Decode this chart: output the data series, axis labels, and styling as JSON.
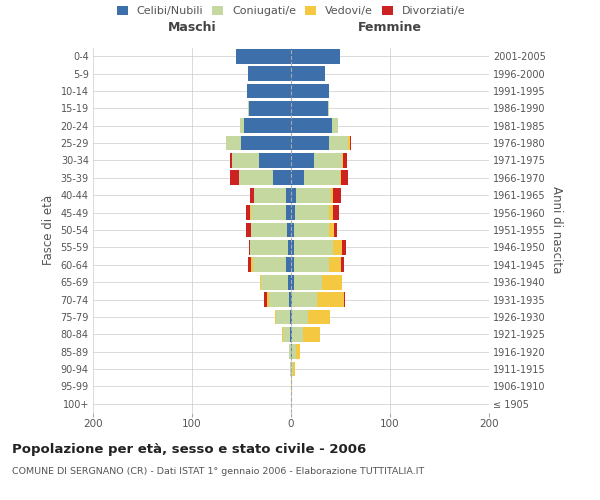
{
  "age_groups": [
    "100+",
    "95-99",
    "90-94",
    "85-89",
    "80-84",
    "75-79",
    "70-74",
    "65-69",
    "60-64",
    "55-59",
    "50-54",
    "45-49",
    "40-44",
    "35-39",
    "30-34",
    "25-29",
    "20-24",
    "15-19",
    "10-14",
    "5-9",
    "0-4"
  ],
  "birth_years": [
    "≤ 1905",
    "1906-1910",
    "1911-1915",
    "1916-1920",
    "1921-1925",
    "1926-1930",
    "1931-1935",
    "1936-1940",
    "1941-1945",
    "1946-1950",
    "1951-1955",
    "1956-1960",
    "1961-1965",
    "1966-1970",
    "1971-1975",
    "1976-1980",
    "1981-1985",
    "1986-1990",
    "1991-1995",
    "1996-2000",
    "2001-2005"
  ],
  "male": {
    "celibi": [
      0,
      0,
      0,
      0,
      1,
      1,
      2,
      3,
      5,
      3,
      4,
      5,
      5,
      18,
      32,
      51,
      47,
      42,
      44,
      43,
      56
    ],
    "coniugati": [
      0,
      0,
      1,
      2,
      7,
      14,
      20,
      27,
      33,
      38,
      36,
      35,
      32,
      35,
      28,
      15,
      5,
      1,
      0,
      0,
      0
    ],
    "vedovi": [
      0,
      0,
      0,
      0,
      1,
      1,
      2,
      1,
      2,
      0,
      0,
      1,
      0,
      0,
      0,
      0,
      0,
      0,
      0,
      0,
      0
    ],
    "divorziati": [
      0,
      0,
      0,
      0,
      0,
      0,
      3,
      0,
      3,
      1,
      5,
      4,
      4,
      9,
      2,
      0,
      0,
      0,
      0,
      0,
      0
    ]
  },
  "female": {
    "nubili": [
      0,
      0,
      0,
      1,
      1,
      1,
      1,
      3,
      3,
      3,
      3,
      4,
      5,
      13,
      23,
      38,
      41,
      37,
      38,
      34,
      49
    ],
    "coniugate": [
      0,
      0,
      2,
      4,
      11,
      16,
      25,
      28,
      35,
      39,
      35,
      34,
      35,
      36,
      29,
      20,
      6,
      1,
      0,
      0,
      0
    ],
    "vedove": [
      0,
      1,
      2,
      4,
      17,
      22,
      28,
      21,
      12,
      10,
      5,
      4,
      2,
      1,
      1,
      2,
      0,
      0,
      0,
      0,
      0
    ],
    "divorziate": [
      0,
      0,
      0,
      0,
      0,
      0,
      1,
      0,
      4,
      4,
      3,
      6,
      9,
      8,
      4,
      1,
      0,
      0,
      0,
      0,
      0
    ]
  },
  "colors": {
    "celibi_nubili": "#3d6faa",
    "coniugati": "#c5d8a0",
    "vedovi": "#f5c842",
    "divorziati": "#cc2222"
  },
  "xlim": 200,
  "title": "Popolazione per età, sesso e stato civile - 2006",
  "subtitle": "COMUNE DI SERGNANO (CR) - Dati ISTAT 1° gennaio 2006 - Elaborazione TUTTITALIA.IT",
  "ylabel_left": "Fasce di età",
  "ylabel_right": "Anni di nascita",
  "xlabel_left": "Maschi",
  "xlabel_right": "Femmine",
  "background_color": "#ffffff",
  "grid_color": "#cccccc"
}
